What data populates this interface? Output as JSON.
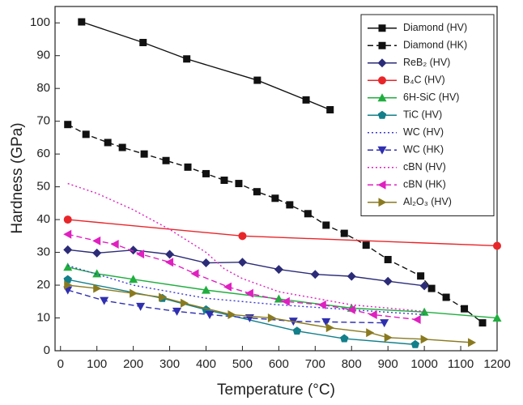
{
  "chart_data": {
    "type": "line",
    "xlabel": "Temperature (°C)",
    "ylabel": "Hardness (GPa)",
    "xlim": [
      -15,
      1200
    ],
    "ylim": [
      0,
      105
    ],
    "xticks": [
      0,
      100,
      200,
      300,
      400,
      500,
      600,
      700,
      800,
      900,
      1000,
      1100,
      1200
    ],
    "yticks": [
      0,
      10,
      20,
      30,
      40,
      50,
      60,
      70,
      80,
      90,
      100
    ],
    "legend": "upper right",
    "series": [
      {
        "name": "Diamond (HV)",
        "color": "#111111",
        "dash": "solid",
        "marker": "square",
        "x": [
          58,
          227,
          347,
          541,
          675,
          741
        ],
        "values": [
          100.3,
          94,
          89,
          82.5,
          76.5,
          73.5
        ]
      },
      {
        "name": "Diamond (HK)",
        "color": "#111111",
        "dash": "dashed",
        "marker": "square",
        "x": [
          20,
          70,
          130,
          170,
          230,
          290,
          350,
          400,
          450,
          490,
          540,
          590,
          630,
          680,
          730,
          780,
          840,
          900,
          990,
          1020,
          1060,
          1110,
          1160
        ],
        "values": [
          69,
          66,
          63.5,
          62,
          60,
          58,
          56,
          54,
          52,
          51,
          48.5,
          46.5,
          44.5,
          41.8,
          38.3,
          35.8,
          32.2,
          27.8,
          22.8,
          19,
          16.3,
          12.8,
          8.5
        ]
      },
      {
        "name": "ReB₂ (HV)",
        "color": "#2b2b78",
        "dash": "solid",
        "marker": "diamond",
        "x": [
          20,
          100,
          200,
          300,
          400,
          500,
          600,
          700,
          800,
          900,
          1000
        ],
        "values": [
          30.8,
          29.8,
          30.7,
          29.4,
          26.8,
          27,
          24.8,
          23.3,
          22.7,
          21.2,
          19.8
        ]
      },
      {
        "name": "B₄C (HV)",
        "color": "#e8262a",
        "dash": "solid",
        "marker": "circle",
        "x": [
          20,
          500,
          1200
        ],
        "values": [
          40,
          35,
          32
        ]
      },
      {
        "name": "6H-SiC (HV)",
        "color": "#1fae3e",
        "dash": "solid",
        "marker": "triangle-up",
        "x": [
          20,
          100,
          200,
          400,
          600,
          800,
          1000,
          1200
        ],
        "values": [
          25.5,
          23.5,
          21.8,
          18.5,
          15.8,
          13,
          11.8,
          10
        ]
      },
      {
        "name": "TiC (HV)",
        "color": "#127f8a",
        "dash": "solid",
        "marker": "pentagon",
        "x": [
          20,
          280,
          400,
          650,
          780,
          975
        ],
        "values": [
          21.7,
          16,
          12.5,
          6,
          3.7,
          1.9
        ]
      },
      {
        "name": "WC (HV)",
        "color": "#3b3bd6",
        "dash": "dotted",
        "marker": "none",
        "x": [
          20,
          200,
          400,
          600,
          800,
          1000
        ],
        "values": [
          26,
          20,
          16,
          14,
          12.5,
          11
        ]
      },
      {
        "name": "WC (HK)",
        "color": "#2f2fb0",
        "dash": "dashed",
        "marker": "triangle-down",
        "x": [
          20,
          120,
          220,
          320,
          410,
          520,
          640,
          730,
          890
        ],
        "values": [
          18.5,
          15.3,
          13.5,
          12,
          11,
          10,
          9,
          8.8,
          8.5
        ]
      },
      {
        "name": "cBN (HV)",
        "color": "#e020c0",
        "dash": "dotted",
        "marker": "none",
        "x": [
          20,
          100,
          200,
          300,
          400,
          450,
          500,
          600,
          700,
          800,
          900,
          1000
        ],
        "values": [
          51,
          48,
          43,
          37,
          30,
          25,
          22,
          18,
          16,
          14,
          13,
          12
        ]
      },
      {
        "name": "cBN (HK)",
        "color": "#e020c0",
        "dash": "dashed",
        "marker": "triangle-left",
        "x": [
          20,
          100,
          150,
          220,
          300,
          370,
          460,
          520,
          620,
          720,
          800,
          860,
          980
        ],
        "values": [
          35.5,
          33.5,
          32.5,
          29.5,
          27,
          23.5,
          19.5,
          17.5,
          15,
          14,
          12.5,
          11,
          9.5
        ]
      },
      {
        "name": "Al₂O₃ (HV)",
        "color": "#8a7a1f",
        "dash": "solid",
        "marker": "triangle-right",
        "x": [
          20,
          100,
          200,
          280,
          340,
          470,
          580,
          740,
          850,
          900,
          1000,
          1130
        ],
        "values": [
          20,
          19,
          17.5,
          16.3,
          14.5,
          11,
          10,
          7,
          5.5,
          4,
          3.5,
          2.5
        ]
      }
    ]
  }
}
